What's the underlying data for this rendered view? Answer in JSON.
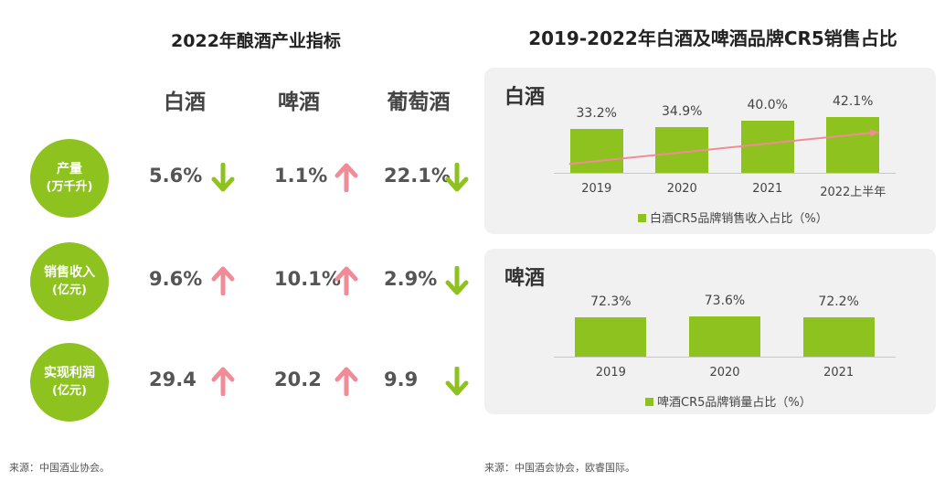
{
  "left": {
    "title": "2022年酿酒产业指标",
    "columns": [
      "白酒",
      "啤酒",
      "葡萄酒"
    ],
    "rows": [
      {
        "label": "产量",
        "unit": "(万千升)",
        "cells": [
          {
            "value": "5.6%",
            "dir": "down"
          },
          {
            "value": "1.1%",
            "dir": "up"
          },
          {
            "value": "22.1%",
            "dir": "down"
          }
        ]
      },
      {
        "label": "销售收入",
        "unit": "(亿元)",
        "cells": [
          {
            "value": "9.6%",
            "dir": "up"
          },
          {
            "value": "10.1%",
            "dir": "up"
          },
          {
            "value": "2.9%",
            "dir": "down"
          }
        ]
      },
      {
        "label": "实现利润",
        "unit": "(亿元)",
        "cells": [
          {
            "value": "29.4",
            "dir": "up"
          },
          {
            "value": "20.2",
            "dir": "up"
          },
          {
            "value": "9.9",
            "dir": "down"
          }
        ]
      }
    ],
    "source": "来源：中国酒业协会。"
  },
  "right": {
    "title": "2019-2022年白酒及啤酒品牌CR5销售占比",
    "source": "来源：中国酒会协会，欧睿国际。"
  },
  "colors": {
    "green": "#8dc21f",
    "pink": "#f08c97",
    "panel_bg": "#f1f1f1"
  },
  "chart_data": [
    {
      "type": "bar",
      "panel_label": "白酒",
      "categories": [
        "2019",
        "2020",
        "2021",
        "2022上半年"
      ],
      "series": [
        {
          "name": "白酒CR5品牌销售收入占比（%）",
          "values": [
            33.2,
            34.9,
            40.0,
            42.1
          ]
        }
      ],
      "labels": [
        "33.2%",
        "34.9%",
        "40.0%",
        "42.1%"
      ],
      "ylim": [
        0,
        80
      ],
      "trend_arrow": true
    },
    {
      "type": "bar",
      "panel_label": "啤酒",
      "categories": [
        "2019",
        "2020",
        "2021"
      ],
      "series": [
        {
          "name": "啤酒CR5品牌销量占比（%）",
          "values": [
            72.3,
            73.6,
            72.2
          ]
        }
      ],
      "labels": [
        "72.3%",
        "73.6%",
        "72.2%"
      ],
      "ylim": [
        0,
        120
      ],
      "trend_arrow": false
    }
  ]
}
